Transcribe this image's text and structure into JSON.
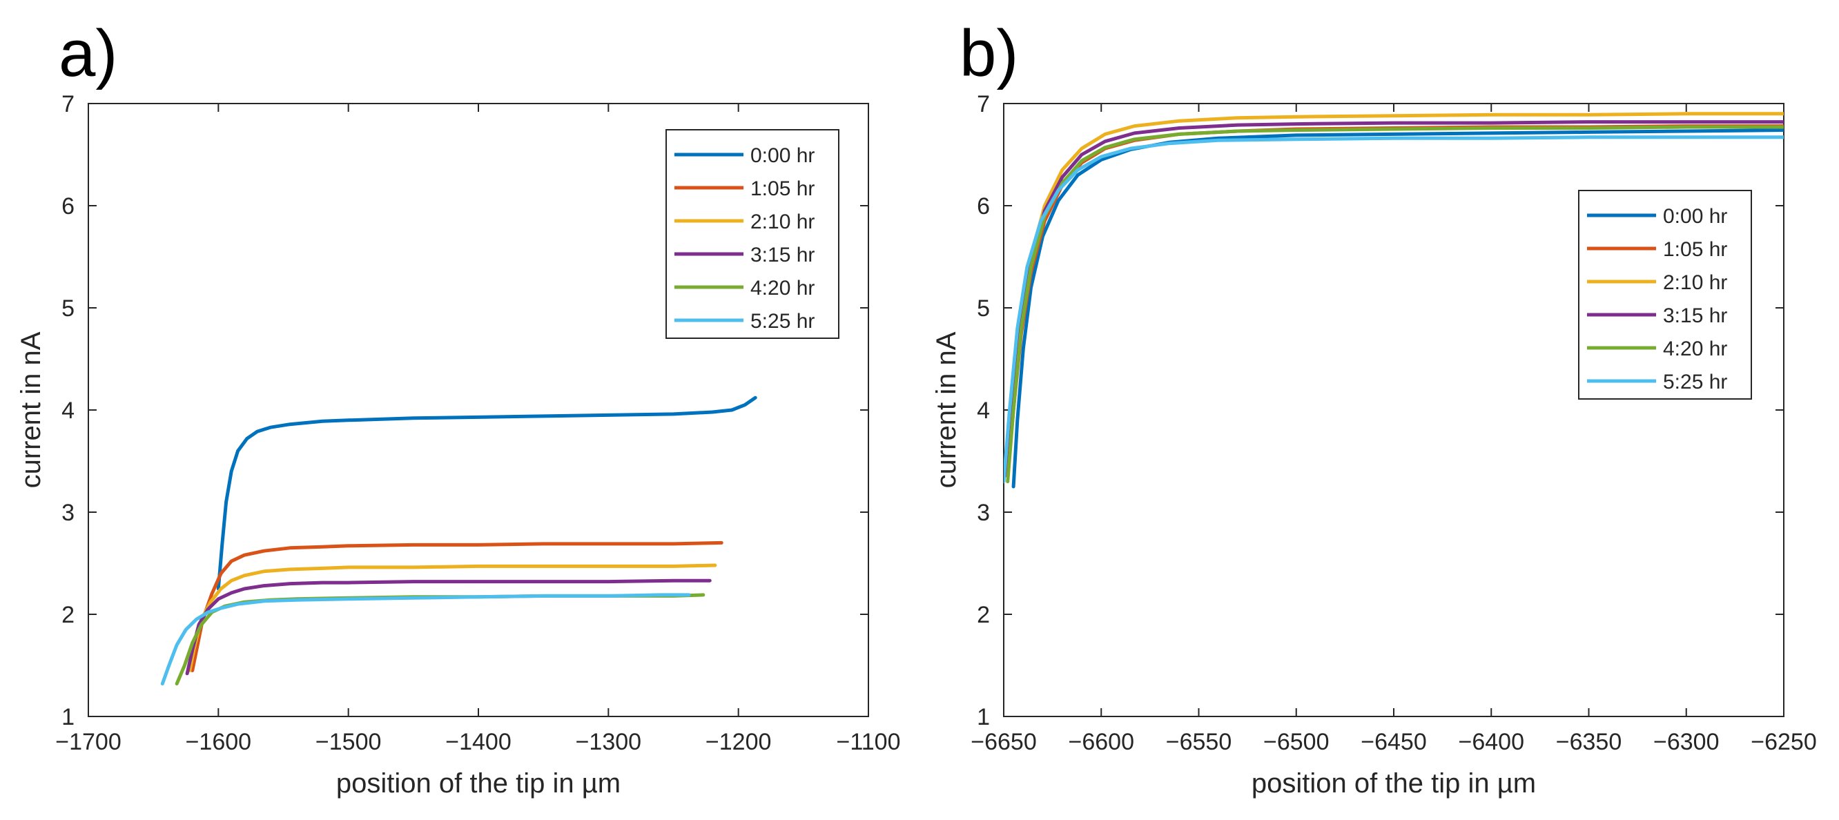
{
  "chart_data": [
    {
      "panel_label": "a)",
      "type": "line",
      "title": "",
      "xlabel": "position of the tip in µm",
      "ylabel": "current in nA",
      "xlim": [
        -1700,
        -1100
      ],
      "ylim": [
        1,
        7
      ],
      "xticks": [
        -1700,
        -1600,
        -1500,
        -1400,
        -1300,
        -1200,
        -1100
      ],
      "yticks": [
        1,
        2,
        3,
        4,
        5,
        6,
        7
      ],
      "xtick_labels": [
        "−1700",
        "−1600",
        "−1500",
        "−1400",
        "−1300",
        "−1200",
        "−1100"
      ],
      "ytick_labels": [
        "1",
        "2",
        "3",
        "4",
        "5",
        "6",
        "7"
      ],
      "legend_position": "top-right",
      "series": [
        {
          "name": "0:00 hr",
          "color": "#0072BD",
          "points": [
            [
              -1600,
              2.25
            ],
            [
              -1597,
              2.7
            ],
            [
              -1594,
              3.1
            ],
            [
              -1590,
              3.4
            ],
            [
              -1585,
              3.6
            ],
            [
              -1578,
              3.72
            ],
            [
              -1570,
              3.79
            ],
            [
              -1560,
              3.83
            ],
            [
              -1545,
              3.86
            ],
            [
              -1520,
              3.89
            ],
            [
              -1500,
              3.9
            ],
            [
              -1450,
              3.92
            ],
            [
              -1400,
              3.93
            ],
            [
              -1350,
              3.94
            ],
            [
              -1300,
              3.95
            ],
            [
              -1250,
              3.96
            ],
            [
              -1220,
              3.98
            ],
            [
              -1205,
              4.0
            ],
            [
              -1195,
              4.05
            ],
            [
              -1187,
              4.12
            ]
          ]
        },
        {
          "name": "1:05 hr",
          "color": "#D95319",
          "points": [
            [
              -1620,
              1.45
            ],
            [
              -1616,
              1.7
            ],
            [
              -1612,
              1.95
            ],
            [
              -1605,
              2.2
            ],
            [
              -1598,
              2.4
            ],
            [
              -1590,
              2.52
            ],
            [
              -1580,
              2.58
            ],
            [
              -1565,
              2.62
            ],
            [
              -1545,
              2.65
            ],
            [
              -1520,
              2.66
            ],
            [
              -1500,
              2.67
            ],
            [
              -1450,
              2.68
            ],
            [
              -1400,
              2.68
            ],
            [
              -1350,
              2.69
            ],
            [
              -1300,
              2.69
            ],
            [
              -1250,
              2.69
            ],
            [
              -1213,
              2.7
            ]
          ]
        },
        {
          "name": "2:10 hr",
          "color": "#EDB120",
          "points": [
            [
              -1622,
              1.45
            ],
            [
              -1618,
              1.7
            ],
            [
              -1613,
              1.95
            ],
            [
              -1606,
              2.12
            ],
            [
              -1598,
              2.25
            ],
            [
              -1590,
              2.33
            ],
            [
              -1580,
              2.38
            ],
            [
              -1565,
              2.42
            ],
            [
              -1545,
              2.44
            ],
            [
              -1520,
              2.45
            ],
            [
              -1500,
              2.46
            ],
            [
              -1450,
              2.46
            ],
            [
              -1400,
              2.47
            ],
            [
              -1350,
              2.47
            ],
            [
              -1300,
              2.47
            ],
            [
              -1250,
              2.47
            ],
            [
              -1218,
              2.48
            ]
          ]
        },
        {
          "name": "3:15 hr",
          "color": "#7E2F8E",
          "points": [
            [
              -1624,
              1.42
            ],
            [
              -1620,
              1.65
            ],
            [
              -1615,
              1.9
            ],
            [
              -1608,
              2.05
            ],
            [
              -1600,
              2.15
            ],
            [
              -1590,
              2.21
            ],
            [
              -1580,
              2.25
            ],
            [
              -1565,
              2.28
            ],
            [
              -1545,
              2.3
            ],
            [
              -1520,
              2.31
            ],
            [
              -1500,
              2.31
            ],
            [
              -1450,
              2.32
            ],
            [
              -1400,
              2.32
            ],
            [
              -1350,
              2.32
            ],
            [
              -1300,
              2.32
            ],
            [
              -1250,
              2.33
            ],
            [
              -1222,
              2.33
            ]
          ]
        },
        {
          "name": "4:20 hr",
          "color": "#77AC30",
          "points": [
            [
              -1632,
              1.32
            ],
            [
              -1626,
              1.5
            ],
            [
              -1620,
              1.72
            ],
            [
              -1613,
              1.9
            ],
            [
              -1605,
              2.02
            ],
            [
              -1595,
              2.08
            ],
            [
              -1580,
              2.12
            ],
            [
              -1560,
              2.14
            ],
            [
              -1540,
              2.15
            ],
            [
              -1500,
              2.16
            ],
            [
              -1450,
              2.17
            ],
            [
              -1400,
              2.17
            ],
            [
              -1350,
              2.18
            ],
            [
              -1300,
              2.18
            ],
            [
              -1250,
              2.18
            ],
            [
              -1227,
              2.19
            ]
          ]
        },
        {
          "name": "5:25 hr",
          "color": "#4DBEEE",
          "points": [
            [
              -1643,
              1.32
            ],
            [
              -1638,
              1.5
            ],
            [
              -1632,
              1.7
            ],
            [
              -1625,
              1.85
            ],
            [
              -1617,
              1.95
            ],
            [
              -1608,
              2.02
            ],
            [
              -1598,
              2.06
            ],
            [
              -1585,
              2.1
            ],
            [
              -1565,
              2.13
            ],
            [
              -1540,
              2.14
            ],
            [
              -1500,
              2.15
            ],
            [
              -1450,
              2.16
            ],
            [
              -1400,
              2.17
            ],
            [
              -1350,
              2.18
            ],
            [
              -1300,
              2.18
            ],
            [
              -1260,
              2.19
            ],
            [
              -1238,
              2.19
            ]
          ]
        }
      ]
    },
    {
      "panel_label": "b)",
      "type": "line",
      "title": "",
      "xlabel": "position of the tip in µm",
      "ylabel": "current in nA",
      "xlim": [
        -6650,
        -6250
      ],
      "ylim": [
        1,
        7
      ],
      "xticks": [
        -6650,
        -6600,
        -6550,
        -6500,
        -6450,
        -6400,
        -6350,
        -6300,
        -6250
      ],
      "yticks": [
        1,
        2,
        3,
        4,
        5,
        6,
        7
      ],
      "xtick_labels": [
        "−6650",
        "−6600",
        "−6550",
        "−6500",
        "−6450",
        "−6400",
        "−6350",
        "−6300",
        "−6250"
      ],
      "ytick_labels": [
        "1",
        "2",
        "3",
        "4",
        "5",
        "6",
        "7"
      ],
      "legend_position": "right",
      "series": [
        {
          "name": "0:00 hr",
          "color": "#0072BD",
          "points": [
            [
              -6645,
              3.25
            ],
            [
              -6643,
              3.9
            ],
            [
              -6640,
              4.6
            ],
            [
              -6636,
              5.2
            ],
            [
              -6630,
              5.7
            ],
            [
              -6622,
              6.05
            ],
            [
              -6612,
              6.3
            ],
            [
              -6600,
              6.45
            ],
            [
              -6585,
              6.55
            ],
            [
              -6565,
              6.62
            ],
            [
              -6540,
              6.66
            ],
            [
              -6500,
              6.69
            ],
            [
              -6450,
              6.7
            ],
            [
              -6400,
              6.71
            ],
            [
              -6350,
              6.72
            ],
            [
              -6300,
              6.73
            ],
            [
              -6250,
              6.74
            ]
          ]
        },
        {
          "name": "1:05 hr",
          "color": "#D95319",
          "points": [
            [
              -6648,
              3.35
            ],
            [
              -6645,
              4.0
            ],
            [
              -6641,
              4.75
            ],
            [
              -6636,
              5.35
            ],
            [
              -6629,
              5.85
            ],
            [
              -6620,
              6.2
            ],
            [
              -6610,
              6.42
            ],
            [
              -6598,
              6.56
            ],
            [
              -6583,
              6.64
            ],
            [
              -6560,
              6.7
            ],
            [
              -6530,
              6.73
            ],
            [
              -6500,
              6.75
            ],
            [
              -6450,
              6.76
            ],
            [
              -6400,
              6.77
            ],
            [
              -6350,
              6.77
            ],
            [
              -6300,
              6.78
            ],
            [
              -6250,
              6.78
            ]
          ]
        },
        {
          "name": "2:10 hr",
          "color": "#EDB120",
          "points": [
            [
              -6648,
              3.4
            ],
            [
              -6645,
              4.1
            ],
            [
              -6641,
              4.9
            ],
            [
              -6636,
              5.5
            ],
            [
              -6629,
              6.0
            ],
            [
              -6620,
              6.35
            ],
            [
              -6610,
              6.56
            ],
            [
              -6598,
              6.7
            ],
            [
              -6583,
              6.78
            ],
            [
              -6560,
              6.83
            ],
            [
              -6530,
              6.86
            ],
            [
              -6500,
              6.87
            ],
            [
              -6450,
              6.88
            ],
            [
              -6400,
              6.89
            ],
            [
              -6350,
              6.89
            ],
            [
              -6300,
              6.9
            ],
            [
              -6250,
              6.9
            ]
          ]
        },
        {
          "name": "3:15 hr",
          "color": "#7E2F8E",
          "points": [
            [
              -6648,
              3.35
            ],
            [
              -6645,
              4.05
            ],
            [
              -6641,
              4.85
            ],
            [
              -6636,
              5.45
            ],
            [
              -6629,
              5.95
            ],
            [
              -6620,
              6.28
            ],
            [
              -6610,
              6.5
            ],
            [
              -6598,
              6.63
            ],
            [
              -6583,
              6.71
            ],
            [
              -6560,
              6.76
            ],
            [
              -6530,
              6.79
            ],
            [
              -6500,
              6.8
            ],
            [
              -6450,
              6.81
            ],
            [
              -6400,
              6.81
            ],
            [
              -6350,
              6.82
            ],
            [
              -6300,
              6.82
            ],
            [
              -6250,
              6.82
            ]
          ]
        },
        {
          "name": "4:20 hr",
          "color": "#77AC30",
          "points": [
            [
              -6648,
              3.3
            ],
            [
              -6645,
              4.0
            ],
            [
              -6641,
              4.8
            ],
            [
              -6636,
              5.4
            ],
            [
              -6629,
              5.9
            ],
            [
              -6620,
              6.22
            ],
            [
              -6610,
              6.44
            ],
            [
              -6598,
              6.57
            ],
            [
              -6583,
              6.65
            ],
            [
              -6560,
              6.7
            ],
            [
              -6530,
              6.73
            ],
            [
              -6500,
              6.74
            ],
            [
              -6450,
              6.75
            ],
            [
              -6400,
              6.76
            ],
            [
              -6350,
              6.76
            ],
            [
              -6300,
              6.77
            ],
            [
              -6250,
              6.77
            ]
          ]
        },
        {
          "name": "5:25 hr",
          "color": "#4DBEEE",
          "points": [
            [
              -6650,
              3.3
            ],
            [
              -6647,
              4.0
            ],
            [
              -6643,
              4.8
            ],
            [
              -6638,
              5.4
            ],
            [
              -6631,
              5.85
            ],
            [
              -6622,
              6.15
            ],
            [
              -6612,
              6.35
            ],
            [
              -6600,
              6.48
            ],
            [
              -6585,
              6.56
            ],
            [
              -6565,
              6.61
            ],
            [
              -6540,
              6.64
            ],
            [
              -6500,
              6.65
            ],
            [
              -6450,
              6.66
            ],
            [
              -6400,
              6.66
            ],
            [
              -6350,
              6.67
            ],
            [
              -6300,
              6.67
            ],
            [
              -6250,
              6.67
            ]
          ]
        }
      ]
    }
  ]
}
